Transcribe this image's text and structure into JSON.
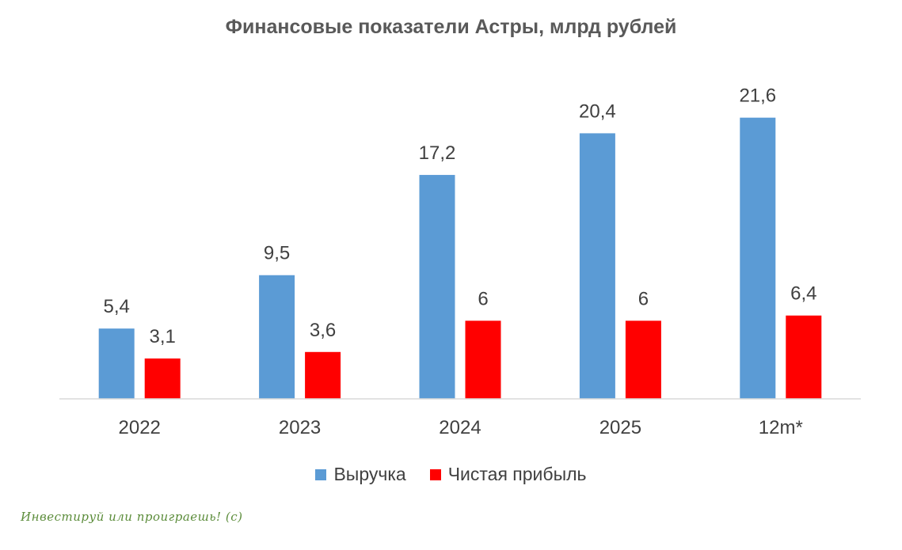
{
  "chart_data": {
    "type": "bar",
    "title": "Финансовые показатели Астры, млрд рублей",
    "categories": [
      "2022",
      "2023",
      "2024",
      "2025",
      "12m*"
    ],
    "series": [
      {
        "name": "Выручка",
        "color": "#5B9BD5",
        "values": [
          5.4,
          9.5,
          17.2,
          20.4,
          21.6
        ],
        "labels": [
          "5,4",
          "9,5",
          "17,2",
          "20,4",
          "21,6"
        ]
      },
      {
        "name": "Чистая прибыль",
        "color": "#FF0000",
        "values": [
          3.1,
          3.6,
          6,
          6,
          6.4
        ],
        "labels": [
          "3,1",
          "3,6",
          "6",
          "6",
          "6,4"
        ]
      }
    ],
    "ylim": [
      0,
      24
    ],
    "grid": false,
    "legend_position": "bottom"
  },
  "watermark": "Инвестируй или проиграешь! (с)"
}
